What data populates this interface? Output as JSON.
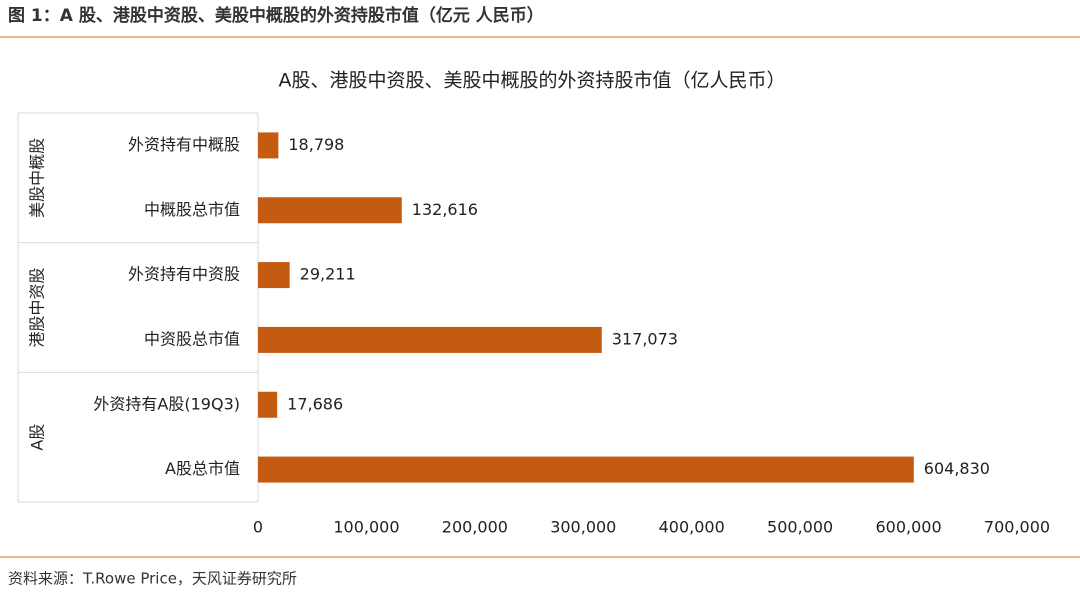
{
  "header": {
    "title": "图 1：A 股、港股中资股、美股中概股的外资持股市值（亿元 人民币）"
  },
  "chart_data": {
    "type": "bar",
    "orientation": "horizontal",
    "title": "A股、港股中资股、美股中概股的外资持股市值（亿人民币）",
    "color": "#c55a11",
    "groups": [
      {
        "name": "美股中概股",
        "categories": [
          "外资持有中概股",
          "中概股总市值"
        ],
        "values": [
          18798,
          132616
        ],
        "value_labels": [
          "18,798",
          "132,616"
        ]
      },
      {
        "name": "港股中资股",
        "categories": [
          "外资持有中资股",
          "中资股总市值"
        ],
        "values": [
          29211,
          317073
        ],
        "value_labels": [
          "29,211",
          "317,073"
        ]
      },
      {
        "name": "A股",
        "categories": [
          "外资持有A股(19Q3)",
          "A股总市值"
        ],
        "values": [
          17686,
          604830
        ],
        "value_labels": [
          "17,686",
          "604,830"
        ]
      }
    ],
    "xlim": [
      0,
      700000
    ],
    "xticks": [
      0,
      {
        "value": 100000,
        "label": "100,000"
      },
      {
        "value": 200000,
        "label": "200,000"
      },
      {
        "value": 300000,
        "label": "300,000"
      },
      {
        "value": 400000,
        "label": "400,000"
      },
      {
        "value": 500000,
        "label": "500,000"
      },
      {
        "value": 600000,
        "label": "600,000"
      },
      {
        "value": 700000,
        "label": "700,000"
      }
    ],
    "grid": false
  },
  "footer": {
    "source": "资料来源：T.Rowe Price，天风证券研究所"
  }
}
